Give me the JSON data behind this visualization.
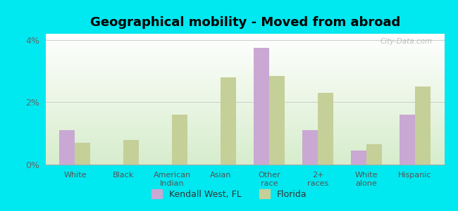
{
  "title": "Geographical mobility - Moved from abroad",
  "categories": [
    "White",
    "Black",
    "American\nIndian",
    "Asian",
    "Other\nrace",
    "2+\nraces",
    "White\nalone",
    "Hispanic"
  ],
  "kendall_values": [
    1.1,
    0.0,
    0.0,
    0.0,
    3.75,
    1.1,
    0.45,
    1.6
  ],
  "florida_values": [
    0.7,
    0.8,
    1.6,
    2.8,
    2.85,
    2.3,
    0.65,
    2.5
  ],
  "kendall_color": "#c9a8d4",
  "florida_color": "#c5cf98",
  "outer_background": "#00e8f0",
  "ylim": [
    0,
    4.2
  ],
  "yticks": [
    0,
    2,
    4
  ],
  "legend_kendall": "Kendall West, FL",
  "legend_florida": "Florida",
  "watermark": "City-Data.com",
  "title_fontsize": 13,
  "axis_label_fontsize": 8
}
